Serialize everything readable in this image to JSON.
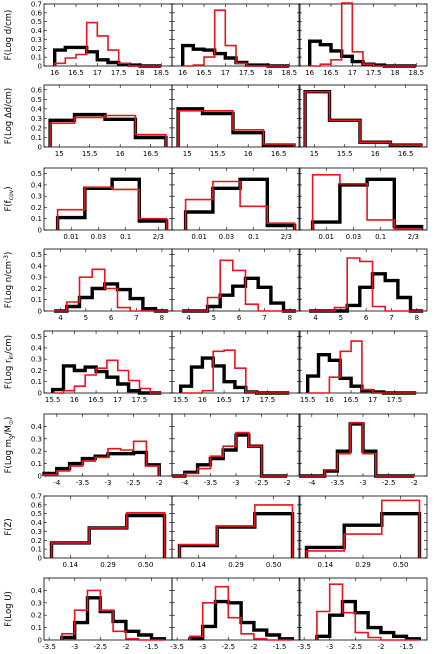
{
  "figure": {
    "series_colors": {
      "black": "#000000",
      "red": "#e8141e"
    }
  },
  "chart_data": [
    {
      "type": "histogram-grid-row",
      "ylabel": "F(Log d/cm)",
      "ylim": [
        0,
        0.7
      ],
      "yticks": [
        "0",
        "0.1",
        "0.2",
        "0.3",
        "0.4",
        "0.5",
        "0.6",
        "0.7"
      ],
      "xlim": [
        15.75,
        18.75
      ],
      "xticks": [
        16,
        16.5,
        17,
        17.5,
        18,
        18.5
      ],
      "xtick_labels": [
        "16",
        "16.5",
        "17",
        "17.5",
        "18",
        "18.5"
      ],
      "bin_edges": [
        16.0,
        16.25,
        16.5,
        16.75,
        17.0,
        17.25,
        17.5,
        17.75,
        18.0,
        18.25,
        18.5
      ],
      "panels": [
        {
          "black": [
            0.18,
            0.21,
            0.21,
            0.16,
            0.07,
            0.04,
            0.02,
            0.01,
            0.0,
            0.0
          ],
          "red": [
            0.03,
            0.09,
            0.13,
            0.49,
            0.34,
            0.18,
            0.03,
            0.0,
            0.0,
            0.0
          ]
        },
        {
          "black": [
            0.23,
            0.19,
            0.18,
            0.14,
            0.09,
            0.04,
            0.01,
            0.01,
            0.0,
            0.0
          ],
          "red": [
            0.0,
            0.01,
            0.1,
            0.63,
            0.23,
            0.03,
            0.0,
            0.0,
            0.0,
            0.0
          ]
        },
        {
          "black": [
            0.28,
            0.24,
            0.17,
            0.11,
            0.05,
            0.02,
            0.01,
            0.0,
            0.0,
            0.0
          ],
          "red": [
            0.0,
            0.02,
            0.07,
            0.71,
            0.16,
            0.02,
            0.0,
            0.0,
            0.0,
            0.0
          ]
        }
      ]
    },
    {
      "type": "histogram-grid-row",
      "ylabel": "F(Log Δd/cm)",
      "ylim": [
        0,
        0.65
      ],
      "yticks": [
        "0",
        "0.1",
        "0.2",
        "0.3",
        "0.4",
        "0.5",
        "0.6"
      ],
      "xlim": [
        14.75,
        16.85
      ],
      "xticks": [
        15,
        15.5,
        16,
        16.5
      ],
      "xtick_labels": [
        "15",
        "15.5",
        "16",
        "16.5"
      ],
      "bin_edges": [
        14.85,
        15.25,
        15.75,
        16.25,
        16.75
      ],
      "panels": [
        {
          "black": [
            0.28,
            0.34,
            0.29,
            0.1
          ],
          "red": [
            0.25,
            0.31,
            0.33,
            0.13
          ]
        },
        {
          "black": [
            0.4,
            0.35,
            0.15,
            0.02
          ],
          "red": [
            0.38,
            0.38,
            0.18,
            0.03
          ]
        },
        {
          "black": [
            0.58,
            0.28,
            0.05,
            0.02
          ],
          "red": [
            0.58,
            0.28,
            0.05,
            0.02
          ]
        }
      ]
    },
    {
      "type": "histogram-grid-row",
      "ylabel": "F(f<sub>",
      "ylim": [
        0,
        0.55
      ],
      "yticks": [
        "0",
        "0.1",
        "0.2",
        "0.3",
        "0.4",
        "0.5"
      ],
      "xlim": [
        -0.5,
        4.2
      ],
      "xticks": [
        0.5,
        1.5,
        2.5,
        3.7
      ],
      "xtick_labels": [
        "0.01",
        "0.03",
        "0.1",
        "2/3"
      ],
      "bin_edges": [
        0,
        1,
        2,
        3,
        4
      ],
      "panels": [
        {
          "black": [
            0.11,
            0.37,
            0.45,
            0.08
          ],
          "red": [
            0.18,
            0.38,
            0.36,
            0.1
          ]
        },
        {
          "black": [
            0.16,
            0.37,
            0.45,
            0.04
          ],
          "red": [
            0.27,
            0.43,
            0.21,
            0.06
          ]
        },
        {
          "black": [
            0.07,
            0.4,
            0.45,
            0.03
          ],
          "red": [
            0.49,
            0.41,
            0.09,
            0.01
          ]
        }
      ]
    },
    {
      "type": "histogram-grid-row",
      "ylabel": "F(Log n/cm<sup>-3</sup>)",
      "ylim": [
        0,
        0.55
      ],
      "yticks": [
        "0",
        "0.1",
        "0.2",
        "0.3",
        "0.4",
        "0.5"
      ],
      "xlim": [
        3.35,
        8.4
      ],
      "xticks": [
        4,
        5,
        6,
        7,
        8
      ],
      "xtick_labels": [
        "4",
        "5",
        "6",
        "7",
        "8"
      ],
      "bin_edges": [
        3.75,
        4.25,
        4.75,
        5.25,
        5.75,
        6.25,
        6.75,
        7.25,
        7.75,
        8.25
      ],
      "panels": [
        {
          "black": [
            0.0,
            0.04,
            0.12,
            0.2,
            0.24,
            0.19,
            0.11,
            0.02,
            0.0
          ],
          "red": [
            0.0,
            0.08,
            0.3,
            0.37,
            0.2,
            0.03,
            0.0,
            0.0,
            0.0
          ]
        },
        {
          "black": [
            0.0,
            0.0,
            0.04,
            0.14,
            0.22,
            0.29,
            0.21,
            0.07,
            0.0
          ],
          "red": [
            0.0,
            0.0,
            0.12,
            0.45,
            0.36,
            0.06,
            0.0,
            0.0,
            0.0
          ]
        },
        {
          "black": [
            0.0,
            0.0,
            0.0,
            0.05,
            0.21,
            0.33,
            0.27,
            0.12,
            0.0
          ],
          "red": [
            0.0,
            0.0,
            0.03,
            0.47,
            0.44,
            0.04,
            0.0,
            0.0,
            0.0
          ]
        }
      ]
    },
    {
      "type": "histogram-grid-row",
      "ylabel": "F(Log r<sub>",
      "ylim": [
        0,
        0.55
      ],
      "yticks": [
        "0",
        "0.1",
        "0.2",
        "0.3",
        "0.4",
        "0.5"
      ],
      "xlim": [
        15.3,
        18.25
      ],
      "xticks": [
        15.5,
        16,
        16.5,
        17,
        17.5
      ],
      "xtick_labels": [
        "15.5",
        "16",
        "16.5",
        "17",
        "17.5"
      ],
      "bin_edges": [
        15.5,
        15.75,
        16.0,
        16.25,
        16.5,
        16.75,
        17.0,
        17.25,
        17.5,
        17.75,
        18.0
      ],
      "panels": [
        {
          "black": [
            0.03,
            0.24,
            0.2,
            0.23,
            0.19,
            0.14,
            0.08,
            0.02,
            0.0,
            0.0
          ],
          "red": [
            0.0,
            0.02,
            0.06,
            0.16,
            0.22,
            0.29,
            0.2,
            0.11,
            0.04,
            0.0
          ]
        },
        {
          "black": [
            0.06,
            0.23,
            0.31,
            0.24,
            0.1,
            0.05,
            0.01,
            0.0,
            0.0,
            0.0
          ],
          "red": [
            0.0,
            0.0,
            0.02,
            0.37,
            0.38,
            0.22,
            0.01,
            0.0,
            0.0,
            0.0
          ]
        },
        {
          "black": [
            0.15,
            0.34,
            0.29,
            0.13,
            0.06,
            0.02,
            0.01,
            0.0,
            0.0,
            0.0
          ],
          "red": [
            0.0,
            0.0,
            0.14,
            0.37,
            0.46,
            0.03,
            0.0,
            0.0,
            0.0,
            0.0
          ]
        }
      ]
    },
    {
      "type": "histogram-grid-row",
      "ylabel": "F(Log m<sub>",
      "ylim": [
        0,
        0.5
      ],
      "yticks": [
        "0",
        "0.1",
        "0.2",
        "0.3",
        "0.4"
      ],
      "xlim": [
        -4.25,
        -1.75
      ],
      "xticks": [
        -4,
        -3.5,
        -3,
        -2.5,
        -2
      ],
      "xtick_labels": [
        "-4",
        "-3.5",
        "-3",
        "-2.5",
        "-2"
      ],
      "bin_edges": [
        -4.25,
        -4.0,
        -3.75,
        -3.5,
        -3.25,
        -3.0,
        -2.75,
        -2.5,
        -2.25,
        -2.0
      ],
      "panels": [
        {
          "black": [
            0.02,
            0.06,
            0.1,
            0.14,
            0.16,
            0.18,
            0.18,
            0.19,
            0.09
          ],
          "red": [
            0.01,
            0.04,
            0.08,
            0.12,
            0.15,
            0.22,
            0.21,
            0.28,
            0.08
          ]
        },
        {
          "black": [
            0.0,
            0.03,
            0.09,
            0.14,
            0.21,
            0.33,
            0.24,
            0.0,
            0.0
          ],
          "red": [
            0.0,
            0.02,
            0.06,
            0.16,
            0.24,
            0.35,
            0.24,
            0.0,
            0.0
          ]
        },
        {
          "black": [
            0.0,
            0.0,
            0.04,
            0.2,
            0.42,
            0.2,
            0.0,
            0.0,
            0.0
          ],
          "red": [
            0.0,
            0.0,
            0.05,
            0.18,
            0.43,
            0.18,
            0.0,
            0.0,
            0.0
          ]
        }
      ]
    },
    {
      "type": "histogram-grid-row",
      "ylabel": "F(Z)",
      "ylim": [
        0,
        0.7
      ],
      "yticks": [
        "0",
        "0.1",
        "0.2",
        "0.3",
        "0.4",
        "0.5",
        "0.6",
        "0.7"
      ],
      "xlim": [
        -0.2,
        3.2
      ],
      "xticks": [
        0.5,
        1.5,
        2.5
      ],
      "xtick_labels": [
        "0.14",
        "0.29",
        "0.50"
      ],
      "bin_edges": [
        0,
        1,
        2,
        3
      ],
      "panels": [
        {
          "black": [
            0.17,
            0.34,
            0.48
          ],
          "red": [
            0.17,
            0.34,
            0.51
          ]
        },
        {
          "black": [
            0.14,
            0.35,
            0.5
          ],
          "red": [
            0.15,
            0.36,
            0.6
          ]
        },
        {
          "black": [
            0.12,
            0.37,
            0.5
          ],
          "red": [
            0.08,
            0.27,
            0.65
          ]
        }
      ]
    },
    {
      "type": "histogram-grid-row",
      "ylabel": "F(Log U)",
      "ylim": [
        0,
        0.5
      ],
      "yticks": [
        "0",
        "0.1",
        "0.2",
        "0.3",
        "0.4"
      ],
      "xlim": [
        -3.6,
        -1.1
      ],
      "xticks": [
        -3.5,
        -3,
        -2.5,
        -2,
        -1.5
      ],
      "xtick_labels": [
        "-3.5",
        "-3",
        "-2.5",
        "-2",
        "-1.5"
      ],
      "bin_edges": [
        -3.25,
        -3.0,
        -2.75,
        -2.5,
        -2.25,
        -2.0,
        -1.75,
        -1.5,
        -1.25
      ],
      "panels": [
        {
          "black": [
            0.02,
            0.14,
            0.34,
            0.23,
            0.15,
            0.07,
            0.04,
            0.01
          ],
          "red": [
            0.05,
            0.24,
            0.4,
            0.24,
            0.07,
            0.01,
            0.0,
            0.0
          ]
        },
        {
          "black": [
            0.01,
            0.11,
            0.31,
            0.3,
            0.14,
            0.08,
            0.04,
            0.01
          ],
          "red": [
            0.03,
            0.3,
            0.43,
            0.18,
            0.05,
            0.01,
            0.0,
            0.0
          ]
        },
        {
          "black": [
            0.03,
            0.2,
            0.31,
            0.22,
            0.1,
            0.06,
            0.03,
            0.01
          ],
          "red": [
            0.23,
            0.45,
            0.22,
            0.06,
            0.02,
            0.0,
            0.0,
            0.0
          ]
        }
      ]
    }
  ],
  "ylabel_parts": [
    null,
    null,
    {
      "pre": "F(f",
      "sub": "cov",
      "post": ")"
    },
    {
      "pre": "F(Log n/cm",
      "sup": "-3",
      "post": ")"
    },
    {
      "pre": "F(Log r",
      "sub": "in",
      "post": "/cm)"
    },
    {
      "pre": "F(Log m",
      "sub": "g",
      "post": "/M",
      "sub2": "⊙",
      "post2": ")"
    },
    null,
    null
  ]
}
